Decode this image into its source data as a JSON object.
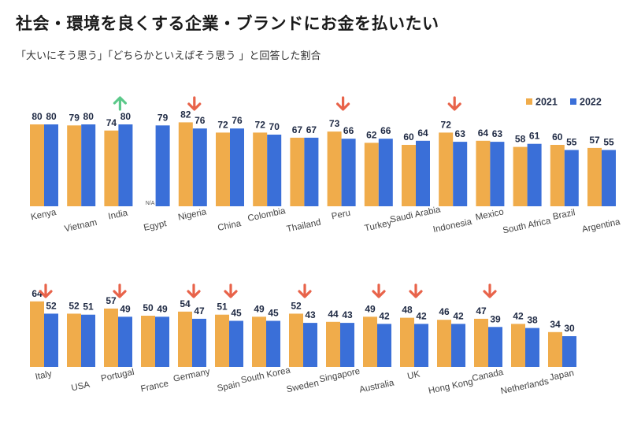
{
  "header": {
    "title": "社会・環境を良くする企業・ブランドにお金を払いたい",
    "subtitle": "「大いにそう思う」「どちらかといえばそう思う 」と回答した割合"
  },
  "colors": {
    "y2021": "#f0ac4b",
    "y2022": "#3a6fd8",
    "down_arrow": "#e8634a",
    "up_arrow": "#5cc98a"
  },
  "na_label": "N/A",
  "chart_data": [
    {
      "type": "bar",
      "categories": [
        "Kenya",
        "Vietnam",
        "India",
        "Egypt",
        "Nigeria",
        "China",
        "Colombia",
        "Thailand",
        "Peru",
        "Turkey",
        "Saudi Arabia",
        "Indonesia",
        "Mexico",
        "South Africa",
        "Brazil",
        "Argentina"
      ],
      "series": [
        {
          "name": "2021",
          "values": [
            80,
            79,
            74,
            null,
            82,
            72,
            72,
            67,
            73,
            62,
            60,
            72,
            64,
            58,
            60,
            57
          ]
        },
        {
          "name": "2022",
          "values": [
            80,
            80,
            80,
            79,
            76,
            76,
            70,
            67,
            66,
            66,
            64,
            63,
            63,
            61,
            55,
            55
          ]
        }
      ],
      "arrows": [
        null,
        null,
        "up",
        null,
        "down",
        null,
        null,
        null,
        "down",
        null,
        null,
        "down",
        null,
        null,
        null,
        null
      ],
      "legend": [
        "2021",
        "2022"
      ],
      "legend_position": "top-right",
      "ylim": [
        0,
        100
      ]
    },
    {
      "type": "bar",
      "categories": [
        "Italy",
        "USA",
        "Portugal",
        "France",
        "Germany",
        "Spain",
        "South Korea",
        "Sweden",
        "Singapore",
        "Australia",
        "UK",
        "Hong Kong",
        "Canada",
        "Netherlands",
        "Japan"
      ],
      "series": [
        {
          "name": "2021",
          "values": [
            64,
            52,
            57,
            50,
            54,
            51,
            49,
            52,
            44,
            49,
            48,
            46,
            47,
            42,
            34
          ]
        },
        {
          "name": "2022",
          "values": [
            52,
            51,
            49,
            49,
            47,
            45,
            45,
            43,
            43,
            42,
            42,
            42,
            39,
            38,
            30
          ]
        }
      ],
      "arrows": [
        "down",
        null,
        "down",
        null,
        "down",
        "down",
        null,
        "down",
        null,
        "down",
        "down",
        null,
        "down",
        null,
        null
      ],
      "ylim": [
        0,
        100
      ]
    }
  ]
}
